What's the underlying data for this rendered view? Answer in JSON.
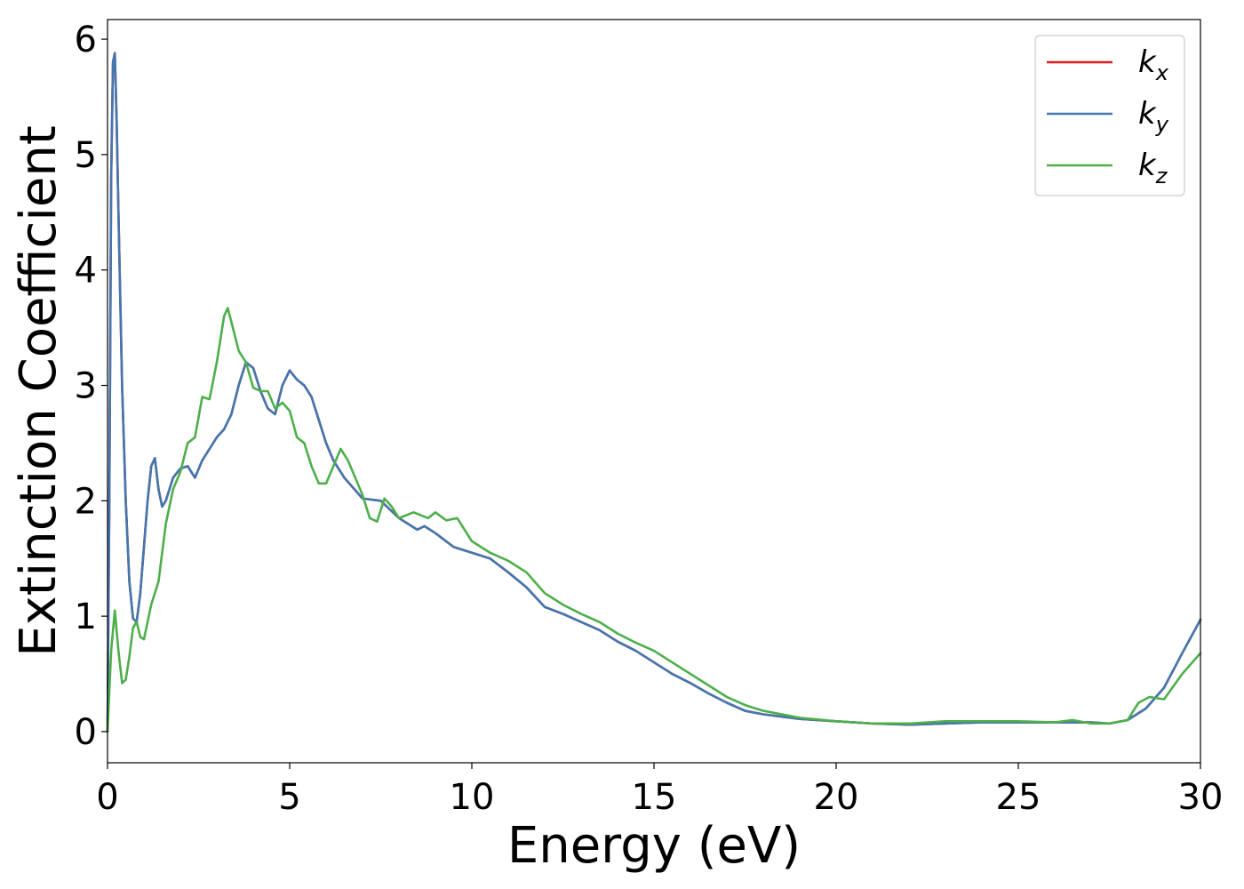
{
  "chart_data": {
    "type": "line",
    "xlabel": "Energy (eV)",
    "ylabel": "Extinction Coefficient",
    "xlim": [
      0,
      30
    ],
    "ylim": [
      -0.27,
      6.17
    ],
    "xticks": [
      "0",
      "5",
      "10",
      "15",
      "20",
      "25",
      "30"
    ],
    "yticks": [
      "0",
      "1",
      "2",
      "3",
      "4",
      "5",
      "6"
    ],
    "legend_position": "top-right",
    "grid": false,
    "series": [
      {
        "name": "k",
        "subscript": "x",
        "color": "#e41a1c",
        "x": [
          0,
          0.05,
          0.1,
          0.15,
          0.2,
          0.25,
          0.3,
          0.4,
          0.5,
          0.6,
          0.7,
          0.8,
          0.9,
          1.0,
          1.1,
          1.2,
          1.3,
          1.4,
          1.5,
          1.6,
          1.8,
          2.0,
          2.2,
          2.4,
          2.6,
          2.8,
          3.0,
          3.2,
          3.4,
          3.6,
          3.8,
          4.0,
          4.2,
          4.4,
          4.6,
          4.8,
          5.0,
          5.2,
          5.4,
          5.6,
          5.8,
          6.0,
          6.2,
          6.5,
          7.0,
          7.5,
          8.0,
          8.5,
          8.7,
          9.0,
          9.5,
          10.0,
          10.5,
          11.0,
          11.5,
          12.0,
          12.5,
          13.0,
          13.5,
          14.0,
          14.5,
          15.0,
          15.5,
          16.0,
          16.5,
          17.0,
          17.5,
          18.0,
          19.0,
          20.0,
          21.0,
          22.0,
          23.0,
          24.0,
          25.0,
          26.0,
          27.0,
          27.5,
          28.0,
          28.5,
          29.0,
          29.5,
          30.0
        ],
        "y": [
          0.0,
          2.0,
          4.8,
          5.8,
          5.88,
          5.3,
          4.5,
          3.0,
          2.0,
          1.3,
          0.98,
          0.95,
          1.2,
          1.6,
          2.0,
          2.3,
          2.37,
          2.1,
          1.95,
          2.0,
          2.2,
          2.28,
          2.3,
          2.2,
          2.35,
          2.45,
          2.55,
          2.62,
          2.75,
          3.0,
          3.2,
          3.15,
          2.95,
          2.8,
          2.75,
          3.0,
          3.13,
          3.05,
          3.0,
          2.9,
          2.7,
          2.5,
          2.35,
          2.2,
          2.02,
          2.0,
          1.85,
          1.75,
          1.78,
          1.72,
          1.6,
          1.55,
          1.5,
          1.38,
          1.25,
          1.08,
          1.02,
          0.95,
          0.88,
          0.78,
          0.7,
          0.6,
          0.5,
          0.42,
          0.33,
          0.25,
          0.18,
          0.15,
          0.11,
          0.09,
          0.07,
          0.06,
          0.07,
          0.08,
          0.08,
          0.08,
          0.08,
          0.07,
          0.1,
          0.2,
          0.38,
          0.68,
          0.97
        ]
      },
      {
        "name": "k",
        "subscript": "y",
        "color": "#4277b0",
        "x": [
          0,
          0.05,
          0.1,
          0.15,
          0.2,
          0.25,
          0.3,
          0.4,
          0.5,
          0.6,
          0.7,
          0.8,
          0.9,
          1.0,
          1.1,
          1.2,
          1.3,
          1.4,
          1.5,
          1.6,
          1.8,
          2.0,
          2.2,
          2.4,
          2.6,
          2.8,
          3.0,
          3.2,
          3.4,
          3.6,
          3.8,
          4.0,
          4.2,
          4.4,
          4.6,
          4.8,
          5.0,
          5.2,
          5.4,
          5.6,
          5.8,
          6.0,
          6.2,
          6.5,
          7.0,
          7.5,
          8.0,
          8.5,
          8.7,
          9.0,
          9.5,
          10.0,
          10.5,
          11.0,
          11.5,
          12.0,
          12.5,
          13.0,
          13.5,
          14.0,
          14.5,
          15.0,
          15.5,
          16.0,
          16.5,
          17.0,
          17.5,
          18.0,
          19.0,
          20.0,
          21.0,
          22.0,
          23.0,
          24.0,
          25.0,
          26.0,
          27.0,
          27.5,
          28.0,
          28.5,
          29.0,
          29.5,
          30.0
        ],
        "y": [
          0.0,
          2.0,
          4.8,
          5.8,
          5.88,
          5.3,
          4.5,
          3.0,
          2.0,
          1.3,
          0.98,
          0.95,
          1.2,
          1.6,
          2.0,
          2.3,
          2.37,
          2.1,
          1.95,
          2.0,
          2.2,
          2.28,
          2.3,
          2.2,
          2.35,
          2.45,
          2.55,
          2.62,
          2.75,
          3.0,
          3.2,
          3.15,
          2.95,
          2.8,
          2.75,
          3.0,
          3.13,
          3.05,
          3.0,
          2.9,
          2.7,
          2.5,
          2.35,
          2.2,
          2.02,
          2.0,
          1.85,
          1.75,
          1.78,
          1.72,
          1.6,
          1.55,
          1.5,
          1.38,
          1.25,
          1.08,
          1.02,
          0.95,
          0.88,
          0.78,
          0.7,
          0.6,
          0.5,
          0.42,
          0.33,
          0.25,
          0.18,
          0.15,
          0.11,
          0.09,
          0.07,
          0.06,
          0.07,
          0.08,
          0.08,
          0.08,
          0.08,
          0.07,
          0.1,
          0.2,
          0.38,
          0.68,
          0.97
        ]
      },
      {
        "name": "k",
        "subscript": "z",
        "color": "#4daf4a",
        "x": [
          0,
          0.1,
          0.2,
          0.3,
          0.4,
          0.5,
          0.6,
          0.7,
          0.8,
          0.9,
          1.0,
          1.1,
          1.2,
          1.4,
          1.6,
          1.8,
          2.0,
          2.2,
          2.4,
          2.6,
          2.8,
          3.0,
          3.2,
          3.3,
          3.4,
          3.6,
          3.8,
          4.0,
          4.2,
          4.4,
          4.6,
          4.8,
          5.0,
          5.2,
          5.4,
          5.6,
          5.8,
          6.0,
          6.2,
          6.4,
          6.6,
          6.8,
          7.0,
          7.2,
          7.4,
          7.6,
          7.8,
          8.0,
          8.4,
          8.8,
          9.0,
          9.3,
          9.6,
          10.0,
          10.5,
          11.0,
          11.5,
          12.0,
          12.5,
          13.0,
          13.5,
          14.0,
          14.5,
          15.0,
          15.5,
          16.0,
          16.5,
          17.0,
          17.5,
          18.0,
          19.0,
          20.0,
          21.0,
          22.0,
          23.0,
          24.0,
          25.0,
          26.0,
          26.5,
          27.0,
          27.5,
          28.0,
          28.3,
          28.6,
          29.0,
          29.5,
          30.0
        ],
        "y": [
          0.0,
          0.7,
          1.05,
          0.7,
          0.42,
          0.45,
          0.65,
          0.9,
          0.95,
          0.82,
          0.8,
          0.95,
          1.1,
          1.3,
          1.8,
          2.1,
          2.25,
          2.5,
          2.55,
          2.9,
          2.88,
          3.2,
          3.6,
          3.67,
          3.55,
          3.3,
          3.2,
          2.98,
          2.95,
          2.95,
          2.8,
          2.85,
          2.78,
          2.55,
          2.5,
          2.3,
          2.15,
          2.15,
          2.3,
          2.45,
          2.35,
          2.2,
          2.05,
          1.85,
          1.82,
          2.02,
          1.95,
          1.85,
          1.9,
          1.85,
          1.9,
          1.83,
          1.85,
          1.65,
          1.55,
          1.48,
          1.38,
          1.2,
          1.1,
          1.02,
          0.95,
          0.85,
          0.77,
          0.7,
          0.6,
          0.5,
          0.4,
          0.3,
          0.23,
          0.18,
          0.12,
          0.09,
          0.07,
          0.07,
          0.09,
          0.09,
          0.09,
          0.08,
          0.1,
          0.07,
          0.07,
          0.1,
          0.25,
          0.3,
          0.28,
          0.5,
          0.68
        ]
      }
    ]
  }
}
